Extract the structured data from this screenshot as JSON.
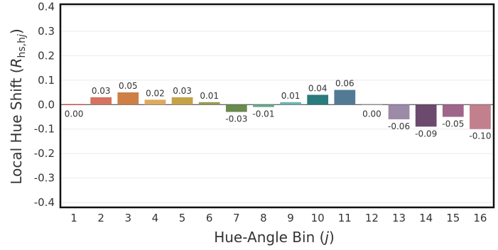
{
  "chart_data": {
    "type": "bar",
    "categories": [
      "1",
      "2",
      "3",
      "4",
      "5",
      "6",
      "7",
      "8",
      "9",
      "10",
      "11",
      "12",
      "13",
      "14",
      "15",
      "16"
    ],
    "values": [
      0.0,
      0.03,
      0.05,
      0.02,
      0.03,
      0.01,
      -0.03,
      -0.01,
      0.01,
      0.04,
      0.06,
      0.0,
      -0.06,
      -0.09,
      -0.05,
      -0.1
    ],
    "data_labels": [
      "0.00",
      "0.03",
      "0.05",
      "0.02",
      "0.03",
      "0.01",
      "-0.03",
      "-0.01",
      "0.01",
      "0.04",
      "0.06",
      "0.00",
      "-0.06",
      "-0.09",
      "-0.05",
      "-0.10"
    ],
    "colors": [
      "#c0504d",
      "#d4735f",
      "#cd7f46",
      "#ddaa5e",
      "#c4a24a",
      "#9a9a55",
      "#6b8a4e",
      "#6aaa8e",
      "#6fb3b3",
      "#2a7b7b",
      "#537a94",
      "#8e8e8e",
      "#9b8aa8",
      "#6b4a6e",
      "#a0668a",
      "#c27f8e"
    ],
    "y_ticks": [
      "0.4",
      "0.3",
      "0.2",
      "0.1",
      "0.0",
      "-0.1",
      "-0.2",
      "-0.3",
      "-0.4"
    ],
    "ylim": [
      -0.42,
      0.41
    ],
    "xlabel": "Hue-Angle Bin (j)",
    "xlabel_parts": {
      "main": "Hue-Angle Bin (",
      "var": "j",
      "close": ")"
    },
    "ylabel": "Local Hue Shift (Rhs,hj)",
    "ylabel_parts": {
      "main": "Local Hue Shift (",
      "var": "R",
      "sub": "hs,h",
      "subvar": "j",
      "close": ")"
    },
    "grid": true
  }
}
